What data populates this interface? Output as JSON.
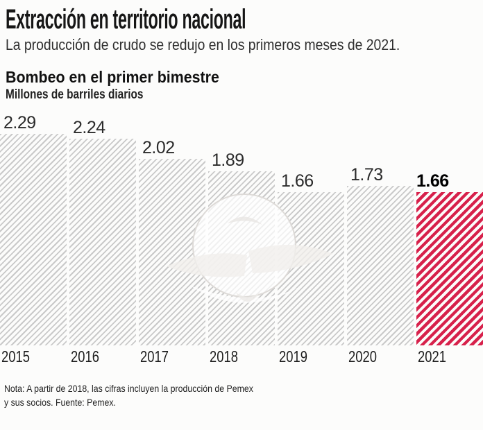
{
  "page": {
    "background": "#fcfcfb"
  },
  "header": {
    "title": "Extracción en territorio nacional",
    "subtitle": "La producción de crudo se redujo en los primeros meses de 2021."
  },
  "chart_header": {
    "title": "Bombeo en el primer bimestre",
    "unit": "Millones de barriles diarios"
  },
  "chart_data": {
    "type": "bar",
    "title": "Bombeo en el primer bimestre",
    "xlabel": "",
    "ylabel": "Millones de barriles diarios",
    "categories": [
      "2015",
      "2016",
      "2017",
      "2018",
      "2019",
      "2020",
      "2021"
    ],
    "values": [
      2.29,
      2.24,
      2.02,
      1.89,
      1.66,
      1.73,
      1.66
    ],
    "value_labels": [
      "2.29",
      "2.24",
      "2.02",
      "1.89",
      "1.66",
      "1.73",
      "1.66"
    ],
    "ylim": [
      0,
      2.4
    ],
    "grid": false,
    "legend_position": "none",
    "highlight_category": "2021",
    "pattern": "diagonal-stripes",
    "colors": {
      "bar_stripe": "#c9c9c9",
      "highlight_stripe": "#d7214b",
      "value_label": "#2b2b2b",
      "highlight_value_label": "#000000"
    }
  },
  "footer": {
    "note_line1": "Nota: A partir de 2018, las cifras incluyen la producción de Pemex",
    "note_line2": "y sus socios. Fuente: Pemex."
  },
  "watermark": {
    "icon": "eagle-logo"
  }
}
